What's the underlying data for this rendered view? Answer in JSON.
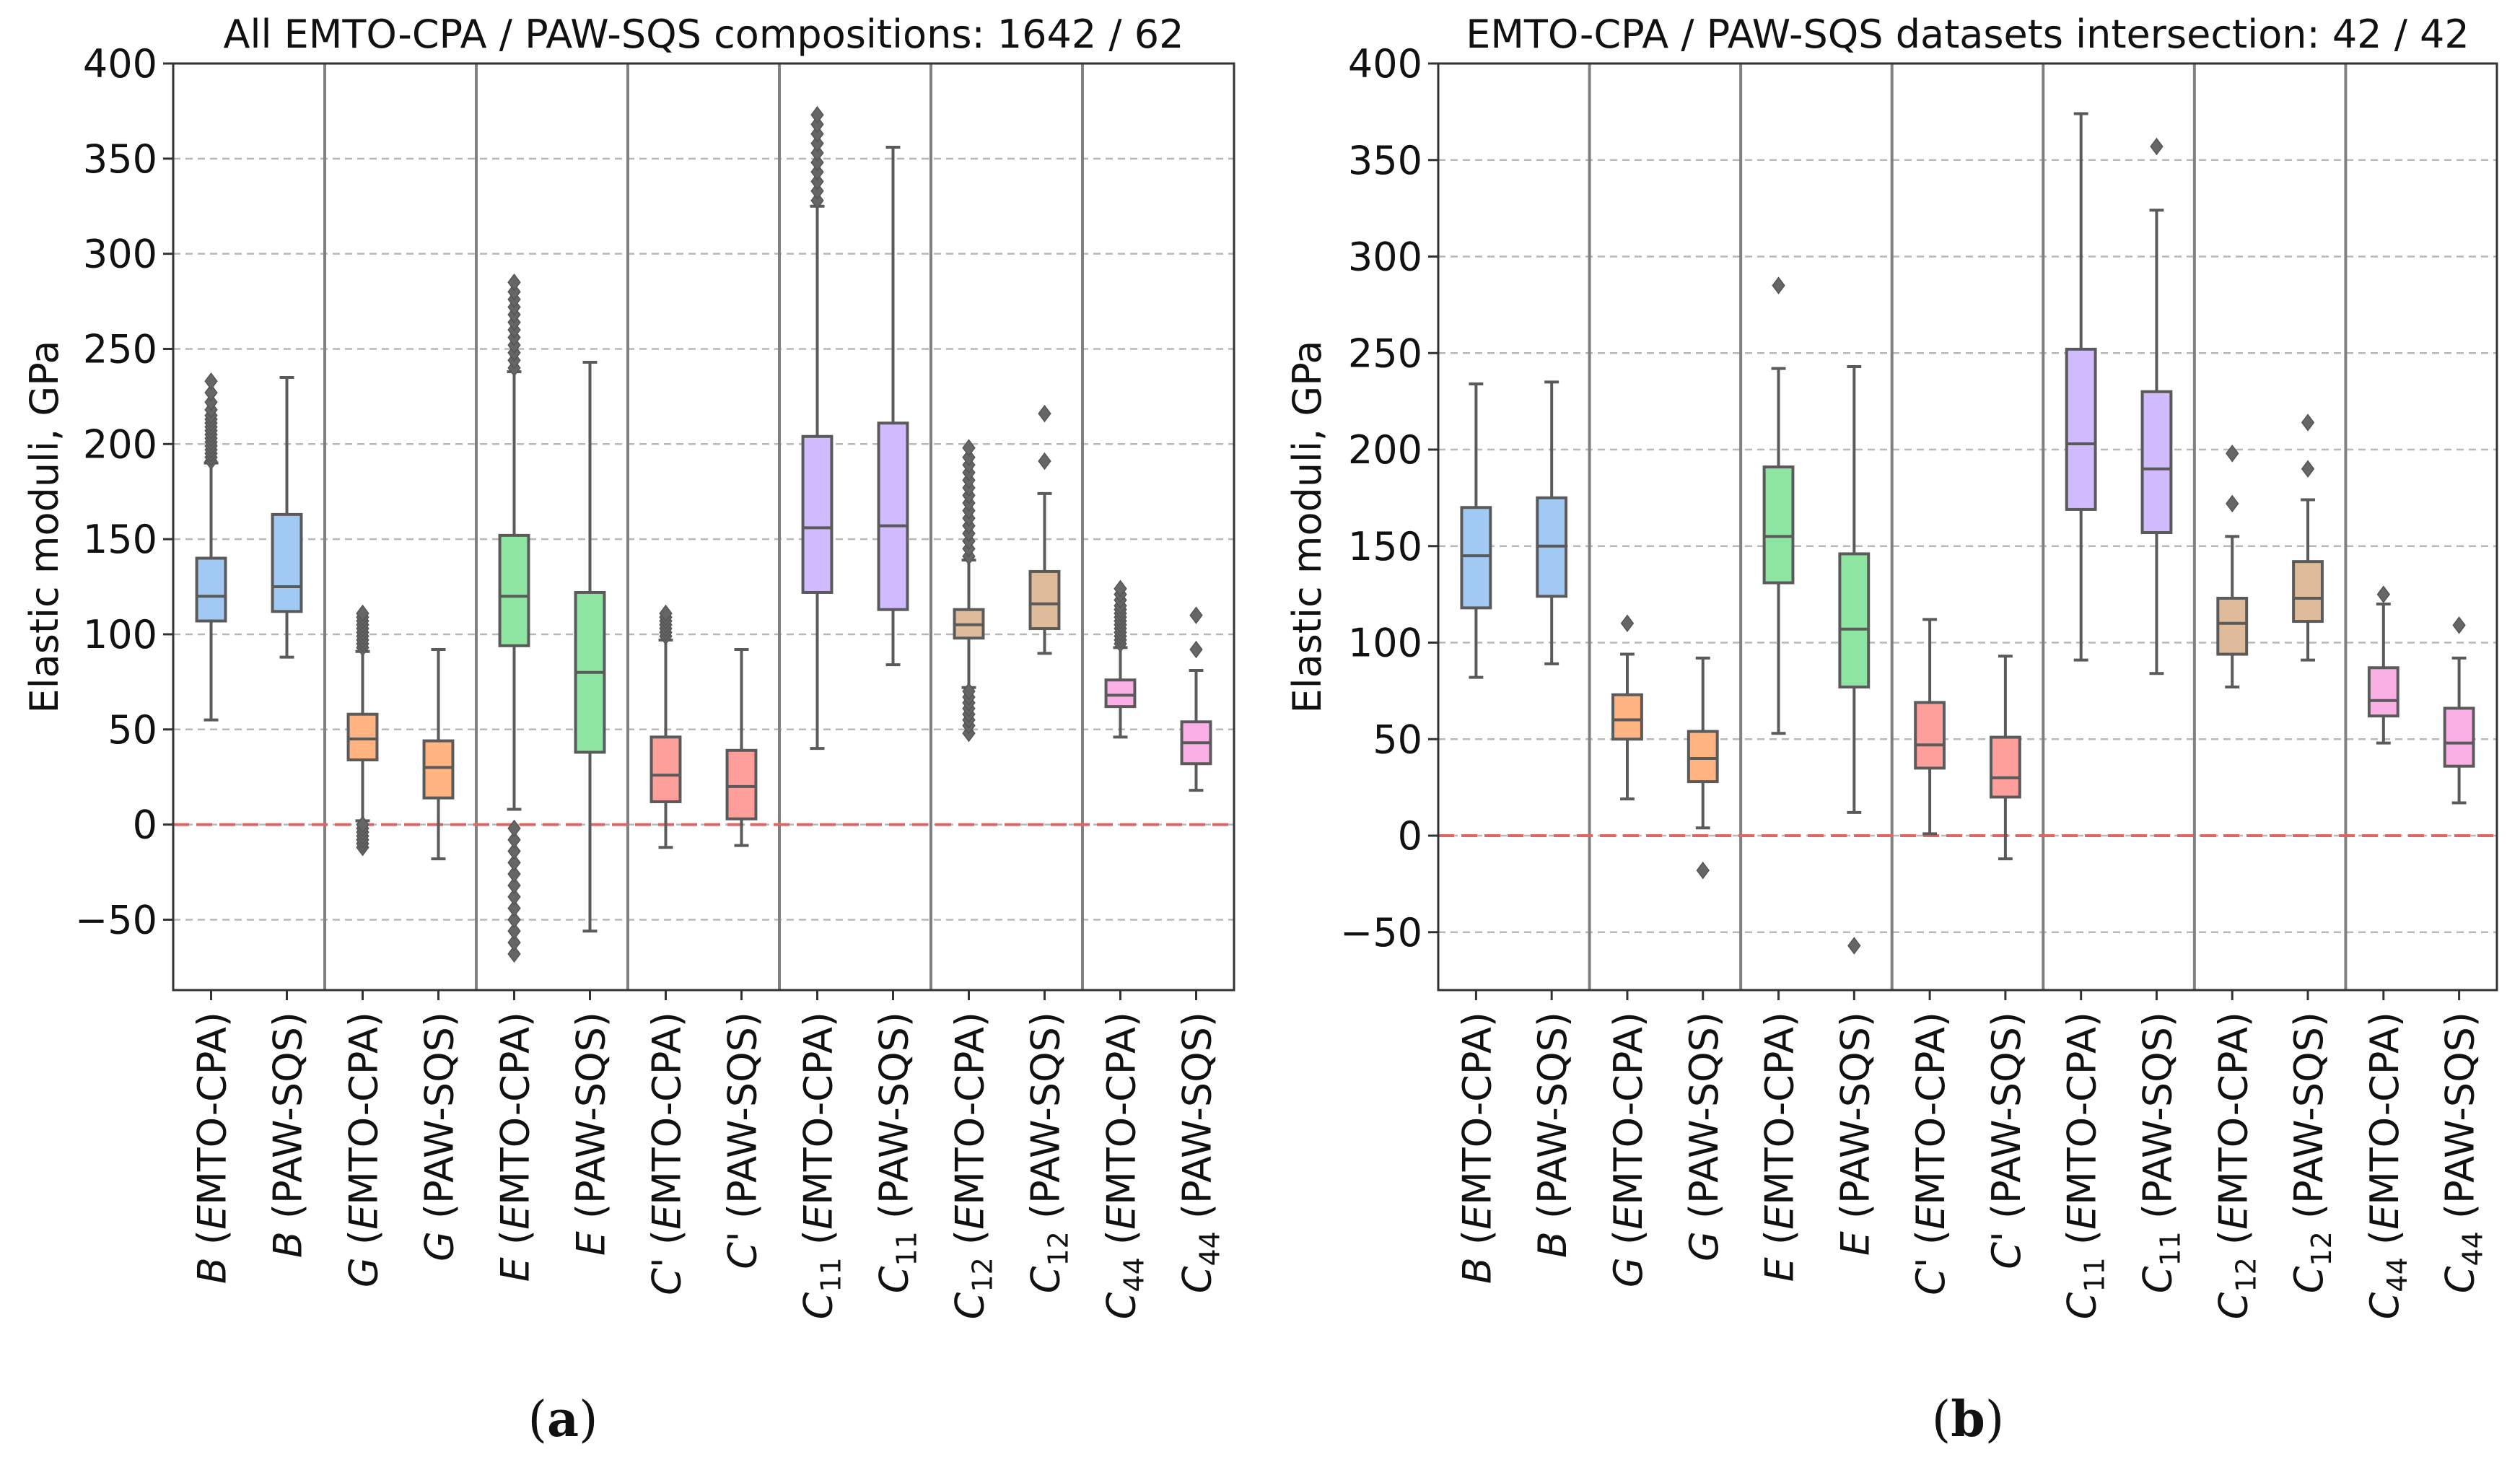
{
  "chart_data": [
    {
      "type": "box",
      "title": "All EMTO-CPA / PAW-SQS compositions: 1642 / 62",
      "caption_letter": "a",
      "ylabel": "Elastic moduli, GPa",
      "ylim": [
        -87,
        400
      ],
      "yticks": [
        400,
        350,
        300,
        250,
        200,
        150,
        100,
        50,
        0,
        -50
      ],
      "reference_line": 0,
      "boxes": [
        {
          "sym": "B",
          "sub": "",
          "method": "EMTO-CPA",
          "color": "#a1c9f4",
          "whisker_low": 55,
          "q1": 107,
          "median": 120,
          "q3": 140,
          "whisker_high": 190,
          "outliers": [
            191,
            193,
            195,
            197,
            199,
            201,
            203,
            205,
            207,
            209,
            211,
            213,
            215,
            218,
            222,
            227,
            233
          ]
        },
        {
          "sym": "B",
          "sub": "",
          "method": "PAW-SQS",
          "color": "#a1c9f4",
          "whisker_low": 88,
          "q1": 112,
          "median": 125,
          "q3": 163,
          "whisker_high": 235,
          "outliers": []
        },
        {
          "sym": "G",
          "sub": "",
          "method": "EMTO-CPA",
          "color": "#ffb482",
          "whisker_low": 2,
          "q1": 34,
          "median": 45,
          "q3": 58,
          "whisker_high": 91,
          "outliers": [
            -12,
            -10,
            -8,
            -6,
            -4,
            -2,
            0,
            93,
            95,
            97,
            99,
            101,
            103,
            105,
            107,
            109,
            111
          ]
        },
        {
          "sym": "G",
          "sub": "",
          "method": "PAW-SQS",
          "color": "#ffb482",
          "whisker_low": -18,
          "q1": 14,
          "median": 30,
          "q3": 44,
          "whisker_high": 92,
          "outliers": []
        },
        {
          "sym": "E",
          "sub": "",
          "method": "EMTO-CPA",
          "color": "#8de5a1",
          "whisker_low": 8,
          "q1": 94,
          "median": 120,
          "q3": 152,
          "whisker_high": 238,
          "outliers": [
            -68,
            -62,
            -56,
            -50,
            -44,
            -38,
            -32,
            -26,
            -20,
            -14,
            -8,
            -2,
            240,
            244,
            248,
            252,
            256,
            260,
            264,
            268,
            272,
            276,
            280,
            285
          ]
        },
        {
          "sym": "E",
          "sub": "",
          "method": "PAW-SQS",
          "color": "#8de5a1",
          "whisker_low": -56,
          "q1": 38,
          "median": 80,
          "q3": 122,
          "whisker_high": 243,
          "outliers": []
        },
        {
          "sym": "C'",
          "sub": "",
          "method": "EMTO-CPA",
          "color": "#ff9f9b",
          "whisker_low": -12,
          "q1": 12,
          "median": 26,
          "q3": 46,
          "whisker_high": 97,
          "outliers": [
            99,
            101,
            103,
            105,
            107,
            109,
            111
          ]
        },
        {
          "sym": "C'",
          "sub": "",
          "method": "PAW-SQS",
          "color": "#ff9f9b",
          "whisker_low": -11,
          "q1": 3,
          "median": 20,
          "q3": 39,
          "whisker_high": 92,
          "outliers": []
        },
        {
          "sym": "C",
          "sub": "11",
          "method": "EMTO-CPA",
          "color": "#d0bbff",
          "whisker_low": 40,
          "q1": 122,
          "median": 156,
          "q3": 204,
          "whisker_high": 325,
          "outliers": [
            328,
            333,
            338,
            343,
            348,
            353,
            358,
            363,
            368,
            373
          ]
        },
        {
          "sym": "C",
          "sub": "11",
          "method": "PAW-SQS",
          "color": "#d0bbff",
          "whisker_low": 84,
          "q1": 113,
          "median": 157,
          "q3": 211,
          "whisker_high": 356,
          "outliers": []
        },
        {
          "sym": "C",
          "sub": "12",
          "method": "EMTO-CPA",
          "color": "#debb9b",
          "whisker_low": 72,
          "q1": 98,
          "median": 105,
          "q3": 113,
          "whisker_high": 139,
          "outliers": [
            48,
            52,
            55,
            58,
            61,
            64,
            67,
            70,
            141,
            145,
            149,
            153,
            157,
            161,
            165,
            169,
            173,
            177,
            181,
            185,
            189,
            193,
            198
          ]
        },
        {
          "sym": "C",
          "sub": "12",
          "method": "PAW-SQS",
          "color": "#debb9b",
          "whisker_low": 90,
          "q1": 103,
          "median": 116,
          "q3": 133,
          "whisker_high": 174,
          "outliers": [
            191,
            216
          ]
        },
        {
          "sym": "C",
          "sub": "44",
          "method": "EMTO-CPA",
          "color": "#fab0e4",
          "whisker_low": 46,
          "q1": 62,
          "median": 68,
          "q3": 76,
          "whisker_high": 93,
          "outliers": [
            95,
            97,
            99,
            101,
            103,
            105,
            107,
            109,
            111,
            113,
            115,
            118,
            121,
            124
          ]
        },
        {
          "sym": "C",
          "sub": "44",
          "method": "PAW-SQS",
          "color": "#fab0e4",
          "whisker_low": 18,
          "q1": 32,
          "median": 43,
          "q3": 54,
          "whisker_high": 81,
          "outliers": [
            92,
            110
          ]
        }
      ]
    },
    {
      "type": "box",
      "title": "EMTO-CPA / PAW-SQS datasets intersection: 42 / 42",
      "caption_letter": "b",
      "ylabel": "Elastic moduli, GPa",
      "ylim": [
        -80,
        400
      ],
      "yticks": [
        400,
        350,
        300,
        250,
        200,
        150,
        100,
        50,
        0,
        -50
      ],
      "reference_line": 0,
      "boxes": [
        {
          "sym": "B",
          "sub": "",
          "method": "EMTO-CPA",
          "color": "#a1c9f4",
          "whisker_low": 82,
          "q1": 118,
          "median": 145,
          "q3": 170,
          "whisker_high": 234,
          "outliers": []
        },
        {
          "sym": "B",
          "sub": "",
          "method": "PAW-SQS",
          "color": "#a1c9f4",
          "whisker_low": 89,
          "q1": 124,
          "median": 150,
          "q3": 175,
          "whisker_high": 235,
          "outliers": []
        },
        {
          "sym": "G",
          "sub": "",
          "method": "EMTO-CPA",
          "color": "#ffb482",
          "whisker_low": 19,
          "q1": 50,
          "median": 60,
          "q3": 73,
          "whisker_high": 94,
          "outliers": [
            110
          ]
        },
        {
          "sym": "G",
          "sub": "",
          "method": "PAW-SQS",
          "color": "#ffb482",
          "whisker_low": 4,
          "q1": 28,
          "median": 40,
          "q3": 54,
          "whisker_high": 92,
          "outliers": [
            -18
          ]
        },
        {
          "sym": "E",
          "sub": "",
          "method": "EMTO-CPA",
          "color": "#8de5a1",
          "whisker_low": 53,
          "q1": 131,
          "median": 155,
          "q3": 191,
          "whisker_high": 242,
          "outliers": [
            285
          ]
        },
        {
          "sym": "E",
          "sub": "",
          "method": "PAW-SQS",
          "color": "#8de5a1",
          "whisker_low": 12,
          "q1": 77,
          "median": 107,
          "q3": 146,
          "whisker_high": 243,
          "outliers": [
            -57
          ]
        },
        {
          "sym": "C'",
          "sub": "",
          "method": "EMTO-CPA",
          "color": "#ff9f9b",
          "whisker_low": 1,
          "q1": 35,
          "median": 47,
          "q3": 69,
          "whisker_high": 112,
          "outliers": []
        },
        {
          "sym": "C'",
          "sub": "",
          "method": "PAW-SQS",
          "color": "#ff9f9b",
          "whisker_low": -12,
          "q1": 20,
          "median": 30,
          "q3": 51,
          "whisker_high": 93,
          "outliers": []
        },
        {
          "sym": "C",
          "sub": "11",
          "method": "EMTO-CPA",
          "color": "#d0bbff",
          "whisker_low": 91,
          "q1": 169,
          "median": 203,
          "q3": 252,
          "whisker_high": 374,
          "outliers": []
        },
        {
          "sym": "C",
          "sub": "11",
          "method": "PAW-SQS",
          "color": "#d0bbff",
          "whisker_low": 84,
          "q1": 157,
          "median": 190,
          "q3": 230,
          "whisker_high": 324,
          "outliers": [
            357
          ]
        },
        {
          "sym": "C",
          "sub": "12",
          "method": "EMTO-CPA",
          "color": "#debb9b",
          "whisker_low": 77,
          "q1": 94,
          "median": 110,
          "q3": 123,
          "whisker_high": 155,
          "outliers": [
            172,
            198
          ]
        },
        {
          "sym": "C",
          "sub": "12",
          "method": "PAW-SQS",
          "color": "#debb9b",
          "whisker_low": 91,
          "q1": 111,
          "median": 123,
          "q3": 142,
          "whisker_high": 174,
          "outliers": [
            190,
            214
          ]
        },
        {
          "sym": "C",
          "sub": "44",
          "method": "EMTO-CPA",
          "color": "#fab0e4",
          "whisker_low": 48,
          "q1": 62,
          "median": 70,
          "q3": 87,
          "whisker_high": 120,
          "outliers": [
            125
          ]
        },
        {
          "sym": "C",
          "sub": "44",
          "method": "PAW-SQS",
          "color": "#fab0e4",
          "whisker_low": 17,
          "q1": 36,
          "median": 48,
          "q3": 66,
          "whisker_high": 92,
          "outliers": [
            109
          ]
        }
      ]
    }
  ],
  "colors": {
    "axis": "#333333",
    "box_line": "#5a5a5a",
    "grid": "#b8b8b8",
    "separator": "#808080",
    "zero_line": "#e06666"
  }
}
